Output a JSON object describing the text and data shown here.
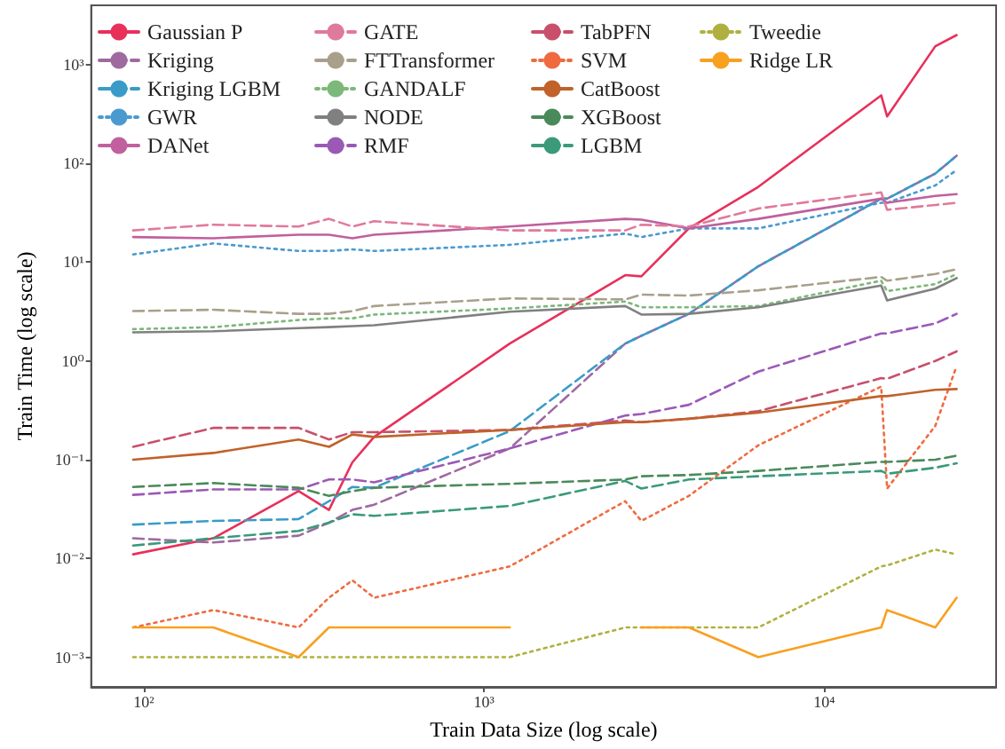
{
  "chart_data": {
    "type": "line",
    "xlabel": "Train Data Size (log scale)",
    "ylabel": "Train Time (log scale)",
    "log": "xy",
    "grid": false,
    "legend": "top left",
    "xlim": [
      70,
      32000
    ],
    "ylim": [
      0.0005,
      4000
    ],
    "xticks": [
      {
        "value": 100,
        "label": "10²"
      },
      {
        "value": 1000,
        "label": "10³"
      },
      {
        "value": 10000,
        "label": "10⁴"
      }
    ],
    "yticks": [
      {
        "value": 0.001,
        "label": "10⁻³"
      },
      {
        "value": 0.01,
        "label": "10⁻²"
      },
      {
        "value": 0.1,
        "label": "10⁻¹"
      },
      {
        "value": 1,
        "label": "10⁰"
      },
      {
        "value": 10,
        "label": "10¹"
      },
      {
        "value": 100,
        "label": "10²"
      },
      {
        "value": 1000,
        "label": "10³"
      }
    ],
    "x": [
      93,
      160,
      285,
      350,
      410,
      475,
      1190,
      2600,
      2900,
      4000,
      6400,
      14700,
      15300,
      21200,
      24500
    ],
    "series": [
      {
        "name": "Gaussian P",
        "color": "#e8305a",
        "line_style": "solid",
        "values": [
          0.011,
          0.016,
          0.048,
          0.031,
          0.094,
          0.17,
          1.5,
          7.4,
          7.2,
          22,
          58,
          490,
          300,
          1540,
          2000
        ]
      },
      {
        "name": "Kriging",
        "color": "#9e6aa0",
        "line_style": "dashed",
        "values": [
          0.016,
          0.0145,
          0.017,
          0.023,
          0.031,
          0.035,
          0.13,
          1.5,
          1.8,
          3.0,
          9.1,
          44,
          44,
          79,
          120
        ]
      },
      {
        "name": "Kriging LGBM",
        "color": "#3a9bc8",
        "line_style": "dashed",
        "values": [
          0.022,
          0.024,
          0.025,
          0.038,
          0.053,
          0.052,
          0.195,
          1.5,
          1.8,
          3.0,
          9.1,
          44,
          44,
          79,
          120
        ]
      },
      {
        "name": "GWR",
        "color": "#4a9ad0",
        "line_style": "dotted",
        "values": [
          12,
          15.5,
          13,
          13,
          13.5,
          13,
          15,
          19.5,
          18,
          22,
          22,
          40,
          40,
          60,
          86
        ]
      },
      {
        "name": "DANet",
        "color": "#c0609e",
        "line_style": "solid",
        "values": [
          18,
          17.5,
          19,
          19,
          17.5,
          19,
          23,
          27.5,
          27,
          22,
          27.5,
          44,
          40,
          47,
          49
        ]
      },
      {
        "name": "GATE",
        "color": "#e07a9a",
        "line_style": "dashed",
        "values": [
          21,
          24,
          23,
          27.5,
          23,
          26,
          21,
          21,
          24,
          23,
          35,
          51,
          34,
          38,
          40
        ]
      },
      {
        "name": "FTTransformer",
        "color": "#a8a08a",
        "line_style": "dashed",
        "values": [
          3.2,
          3.3,
          3.0,
          3.0,
          3.2,
          3.6,
          4.3,
          4.2,
          4.7,
          4.6,
          5.2,
          7.1,
          6.5,
          7.6,
          8.5
        ]
      },
      {
        "name": "GANDALF",
        "color": "#7cb87a",
        "line_style": "dotted",
        "values": [
          2.1,
          2.2,
          2.6,
          2.7,
          2.7,
          2.95,
          3.4,
          4.0,
          3.5,
          3.5,
          3.6,
          6.5,
          5.1,
          6.0,
          7.6
        ]
      },
      {
        "name": "NODE",
        "color": "#808080",
        "line_style": "solid",
        "values": [
          1.95,
          2.0,
          2.15,
          2.2,
          2.25,
          2.3,
          3.15,
          3.6,
          2.95,
          3.0,
          3.5,
          5.8,
          4.1,
          5.4,
          6.9
        ]
      },
      {
        "name": "RMF",
        "color": "#9b59b6",
        "line_style": "dashed",
        "values": [
          0.044,
          0.05,
          0.05,
          0.063,
          0.063,
          0.059,
          0.13,
          0.28,
          0.29,
          0.36,
          0.78,
          1.9,
          1.9,
          2.4,
          3.0
        ]
      },
      {
        "name": "TabPFN",
        "color": "#c8506a",
        "line_style": "dashed",
        "values": [
          0.135,
          0.21,
          0.21,
          0.16,
          0.19,
          0.19,
          0.2,
          0.25,
          0.24,
          0.26,
          0.31,
          0.67,
          0.66,
          1.0,
          1.25
        ]
      },
      {
        "name": "SVM",
        "color": "#f06a40",
        "line_style": "dotted",
        "values": [
          0.002,
          0.003,
          0.002,
          0.004,
          0.006,
          0.004,
          0.0083,
          0.038,
          0.024,
          0.043,
          0.14,
          0.55,
          0.051,
          0.22,
          0.89
        ]
      },
      {
        "name": "CatBoost",
        "color": "#c0622a",
        "line_style": "solid",
        "values": [
          0.1,
          0.117,
          0.16,
          0.135,
          0.18,
          0.17,
          0.2,
          0.24,
          0.24,
          0.26,
          0.3,
          0.44,
          0.44,
          0.51,
          0.52
        ]
      },
      {
        "name": "XGBoost",
        "color": "#4a8a5a",
        "line_style": "dashed",
        "values": [
          0.053,
          0.058,
          0.052,
          0.043,
          0.048,
          0.052,
          0.057,
          0.063,
          0.068,
          0.07,
          0.077,
          0.095,
          0.095,
          0.1,
          0.11
        ]
      },
      {
        "name": "LGBM",
        "color": "#3a9a7a",
        "line_style": "dashed",
        "values": [
          0.0135,
          0.016,
          0.019,
          0.023,
          0.028,
          0.027,
          0.034,
          0.061,
          0.051,
          0.063,
          0.068,
          0.077,
          0.072,
          0.083,
          0.092
        ]
      },
      {
        "name": "Tweedie",
        "color": "#b0b040",
        "line_style": "dotted",
        "values": [
          0.001,
          0.001,
          0.001,
          0.001,
          0.001,
          0.001,
          0.001,
          0.002,
          0.002,
          0.002,
          0.002,
          0.0083,
          0.0085,
          0.0123,
          0.011
        ]
      },
      {
        "name": "Ridge LR",
        "color": "#f8a020",
        "line_style": "solid",
        "values": [
          0.002,
          0.002,
          0.001,
          0.002,
          0.002,
          0.002,
          0.002,
          null,
          0.002,
          0.002,
          0.001,
          0.002,
          0.003,
          0.002,
          0.004
        ]
      }
    ]
  }
}
